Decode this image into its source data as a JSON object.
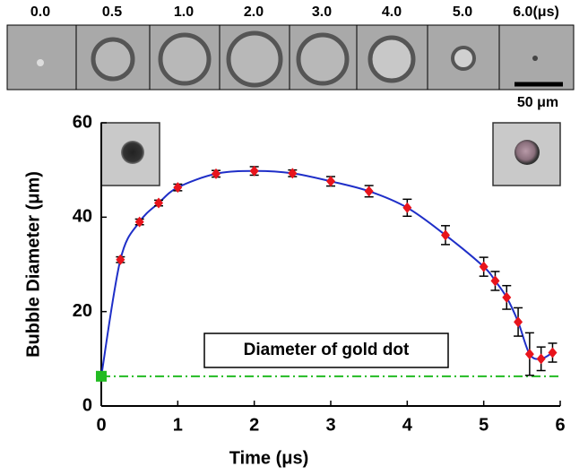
{
  "image_strip": {
    "labels": [
      "0.0",
      "0.5",
      "1.0",
      "2.0",
      "3.0",
      "4.0",
      "5.0",
      "6.0(μs)"
    ],
    "scale_label": "50 μm"
  },
  "chart_data": {
    "type": "line",
    "x_label": "Time (μs)",
    "y_label": "Bubble Diameter (μm)",
    "xlim": [
      0,
      6
    ],
    "ylim": [
      0,
      60
    ],
    "xticks": [
      0,
      1,
      2,
      3,
      4,
      5,
      6
    ],
    "yticks": [
      0,
      20,
      40,
      60
    ],
    "series": [
      {
        "color": "#e8141c",
        "x": [
          0.25,
          0.5,
          0.75,
          1.0,
          1.5,
          2.0,
          2.5,
          3.0,
          3.5,
          4.0,
          4.5,
          5.0,
          5.15,
          5.3,
          5.45,
          5.6,
          5.75,
          5.9
        ],
        "values": [
          31,
          39,
          43,
          46.3,
          49.2,
          49.8,
          49.3,
          47.6,
          45.5,
          42,
          36.2,
          29.5,
          26.5,
          23,
          17.8,
          11,
          10,
          11.3
        ],
        "errors": [
          0.6,
          0.6,
          0.6,
          0.7,
          0.7,
          0.9,
          0.7,
          1,
          1.2,
          1.8,
          2,
          2,
          2,
          2.5,
          3,
          4.5,
          2.5,
          2
        ]
      },
      {
        "color": "#1f2fc8",
        "x": [
          0,
          0.25,
          0.5,
          0.75,
          1.0,
          1.5,
          2.0,
          2.5,
          3.0,
          3.5,
          4.0,
          4.5,
          5.0,
          5.15,
          5.3,
          5.45,
          5.6,
          5.75,
          5.9
        ],
        "values": [
          6.3,
          31,
          39,
          43,
          46.3,
          49.2,
          49.8,
          49.3,
          47.6,
          45.5,
          42,
          36.2,
          29.5,
          26.5,
          23,
          17.8,
          11,
          10,
          11.3
        ]
      }
    ],
    "start_point": {
      "x": 0,
      "y": 6.3,
      "color": "#22bb22"
    },
    "reference_line": {
      "value": 6.3,
      "color": "#22bb22",
      "label": "Diameter of gold dot"
    }
  }
}
